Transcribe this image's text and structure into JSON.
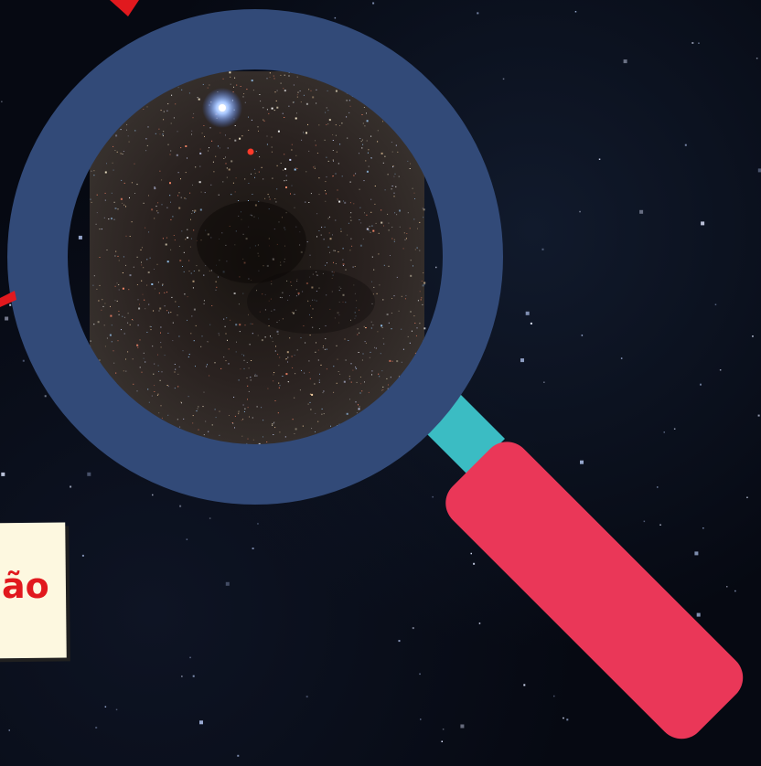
{
  "scene": {
    "note_text": "ão",
    "colors": {
      "background": "#060912",
      "lens_ring": "#324a78",
      "handle_neck": "#3bbcc3",
      "handle": "#ea3758",
      "note_paper": "#fdf8e0",
      "note_text": "#e1191e",
      "arrow": "#e1191e"
    }
  }
}
